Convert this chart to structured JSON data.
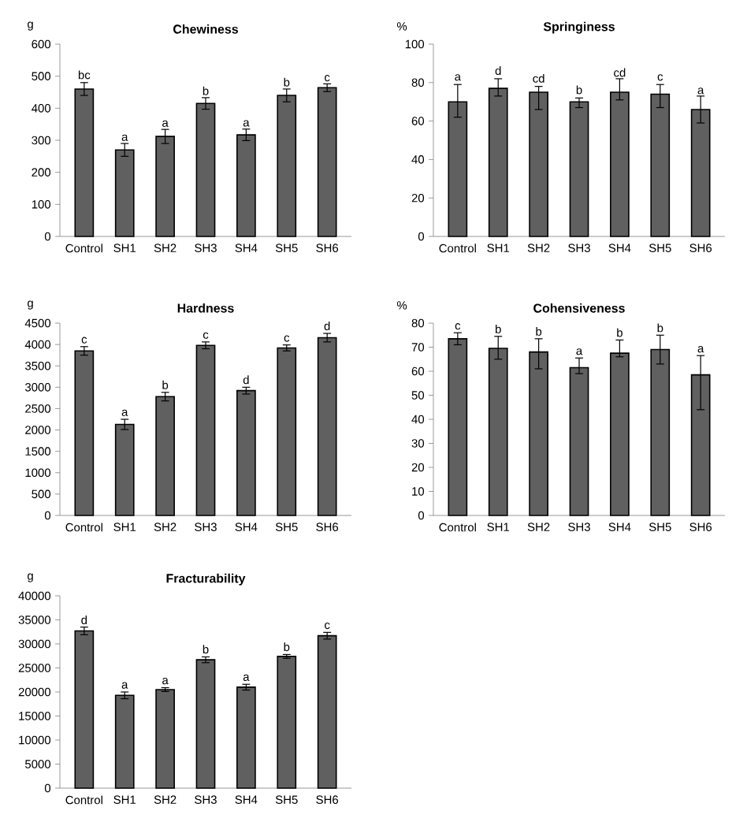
{
  "chart_data": [
    {
      "type": "bar",
      "title": "Chewiness",
      "ylabel": "g",
      "categories": [
        "Control",
        "SH1",
        "SH2",
        "SH3",
        "SH4",
        "SH5",
        "SH6"
      ],
      "values": [
        460,
        270,
        312,
        415,
        317,
        440,
        464
      ],
      "errors": [
        20,
        20,
        22,
        18,
        18,
        20,
        12
      ],
      "color": "#606060",
      "ylim": [
        0,
        600
      ],
      "yticks": [
        0,
        100,
        200,
        300,
        400,
        500,
        600
      ],
      "annotations": [
        {
          "text": "bc",
          "x": "Control",
          "y": 485
        },
        {
          "text": "a",
          "x": "SH1",
          "y": 292
        },
        {
          "text": "a",
          "x": "SH2",
          "y": 336
        },
        {
          "text": "b",
          "x": "SH3",
          "y": 435
        },
        {
          "text": "a",
          "x": "SH4",
          "y": 337
        },
        {
          "text": "b",
          "x": "SH5",
          "y": 462
        },
        {
          "text": "c",
          "x": "SH6",
          "y": 478
        }
      ]
    },
    {
      "type": "bar",
      "title": "Springiness",
      "ylabel": "%",
      "categories": [
        "Control",
        "SH1",
        "SH2",
        "SH3",
        "SH4",
        "SH5",
        "SH6"
      ],
      "values": [
        70,
        77,
        75,
        70,
        75,
        74,
        66
      ],
      "errors": [
        [
          62,
          79
        ],
        [
          73,
          82
        ],
        [
          66,
          78
        ],
        [
          67,
          72
        ],
        [
          71,
          82
        ],
        [
          67,
          79
        ],
        [
          59,
          73
        ]
      ],
      "color": "#606060",
      "ylim": [
        0,
        100
      ],
      "yticks": [
        0,
        20,
        40,
        60,
        80,
        100
      ],
      "annotations": [
        {
          "text": "a",
          "x": "Control",
          "y": 80
        },
        {
          "text": "d",
          "x": "SH1",
          "y": 83
        },
        {
          "text": "cd",
          "x": "SH2",
          "y": 79
        },
        {
          "text": "b",
          "x": "SH3",
          "y": 73
        },
        {
          "text": "cd",
          "x": "SH4",
          "y": 82
        },
        {
          "text": "c",
          "x": "SH5",
          "y": 80
        },
        {
          "text": "a",
          "x": "SH6",
          "y": 73
        }
      ]
    },
    {
      "type": "bar",
      "title": "Hardness",
      "ylabel": "g",
      "categories": [
        "Control",
        "SH1",
        "SH2",
        "SH3",
        "SH4",
        "SH5",
        "SH6"
      ],
      "values": [
        3850,
        2130,
        2780,
        3980,
        2920,
        3920,
        4160
      ],
      "errors": [
        100,
        120,
        100,
        80,
        80,
        70,
        100
      ],
      "color": "#606060",
      "ylim": [
        0,
        4500
      ],
      "yticks": [
        0,
        500,
        1000,
        1500,
        2000,
        2500,
        3000,
        3500,
        4000,
        4500
      ],
      "annotations": [
        {
          "text": "c",
          "x": "Control",
          "y": 3980
        },
        {
          "text": "a",
          "x": "SH1",
          "y": 2280
        },
        {
          "text": "b",
          "x": "SH2",
          "y": 2910
        },
        {
          "text": "c",
          "x": "SH3",
          "y": 4090
        },
        {
          "text": "d",
          "x": "SH4",
          "y": 3030
        },
        {
          "text": "c",
          "x": "SH5",
          "y": 4020
        },
        {
          "text": "d",
          "x": "SH6",
          "y": 4290
        }
      ]
    },
    {
      "type": "bar",
      "title": "Cohensiveness",
      "ylabel": "%",
      "categories": [
        "Control",
        "SH1",
        "SH2",
        "SH3",
        "SH4",
        "SH5",
        "SH6"
      ],
      "values": [
        73.5,
        69.5,
        68,
        61.5,
        67.5,
        69,
        58.5
      ],
      "errors": [
        [
          71,
          76
        ],
        [
          65,
          74.5
        ],
        [
          61,
          73.5
        ],
        [
          59,
          65.5
        ],
        [
          66,
          73
        ],
        [
          63,
          75
        ],
        [
          44,
          66.5
        ]
      ],
      "color": "#606060",
      "ylim": [
        0,
        80
      ],
      "yticks": [
        0,
        10,
        20,
        30,
        40,
        50,
        60,
        70,
        80
      ],
      "annotations": [
        {
          "text": "c",
          "x": "Control",
          "y": 76.5
        },
        {
          "text": "b",
          "x": "SH1",
          "y": 75
        },
        {
          "text": "b",
          "x": "SH2",
          "y": 74
        },
        {
          "text": "a",
          "x": "SH3",
          "y": 66
        },
        {
          "text": "b",
          "x": "SH4",
          "y": 73.5
        },
        {
          "text": "b",
          "x": "SH5",
          "y": 75.5
        },
        {
          "text": "a",
          "x": "SH6",
          "y": 67
        }
      ]
    },
    {
      "type": "bar",
      "title": "Fracturability",
      "ylabel": "g",
      "categories": [
        "Control",
        "SH1",
        "SH2",
        "SH3",
        "SH4",
        "SH5",
        "SH6"
      ],
      "values": [
        32700,
        19300,
        20500,
        26700,
        21000,
        27400,
        31700
      ],
      "errors": [
        800,
        700,
        400,
        600,
        600,
        400,
        700
      ],
      "color": "#606060",
      "ylim": [
        0,
        40000
      ],
      "yticks": [
        0,
        5000,
        10000,
        15000,
        20000,
        25000,
        30000,
        35000,
        40000
      ],
      "annotations": [
        {
          "text": "d",
          "x": "Control",
          "y": 33700
        },
        {
          "text": "a",
          "x": "SH1",
          "y": 20300
        },
        {
          "text": "a",
          "x": "SH2",
          "y": 21200
        },
        {
          "text": "b",
          "x": "SH3",
          "y": 27600
        },
        {
          "text": "a",
          "x": "SH4",
          "y": 21900
        },
        {
          "text": "b",
          "x": "SH5",
          "y": 28100
        },
        {
          "text": "c",
          "x": "SH6",
          "y": 32700
        }
      ]
    }
  ]
}
